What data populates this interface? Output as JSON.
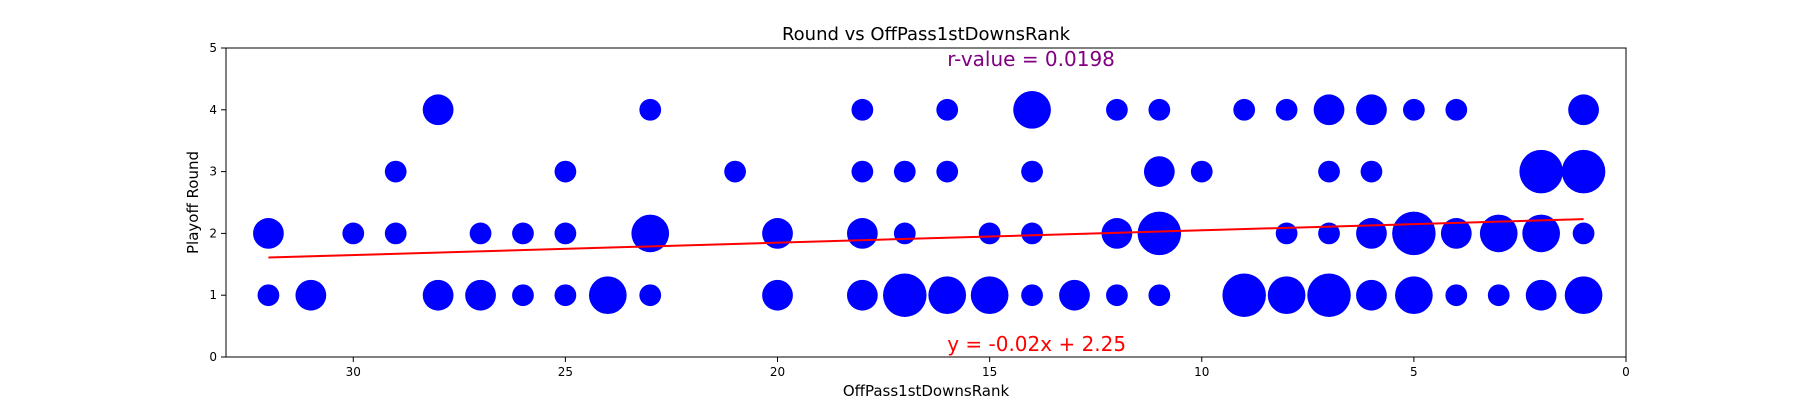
{
  "chart_data": {
    "type": "scatter",
    "title": "Round vs OffPass1stDownsRank",
    "xlabel": "OffPass1stDownsRank",
    "ylabel": "Playoff Round",
    "xlim": [
      33,
      0
    ],
    "ylim": [
      0,
      5
    ],
    "x_inverted": true,
    "x_ticks": [
      30,
      25,
      20,
      15,
      10,
      5,
      0
    ],
    "y_ticks": [
      0,
      1,
      2,
      3,
      4,
      5
    ],
    "grid": false,
    "marker_color": "#0000ff",
    "regression": {
      "slope": -0.02,
      "intercept": 2.25,
      "x_range": [
        32,
        1
      ],
      "color": "#ff0000",
      "equation_label": "y = -0.02x + 2.25",
      "equation_color": "#ff0000"
    },
    "r_value_label": "r-value = 0.0198",
    "r_value_color": "#800080",
    "points": [
      {
        "x": 32,
        "y": 1,
        "count": 1
      },
      {
        "x": 31,
        "y": 1,
        "count": 2
      },
      {
        "x": 28,
        "y": 1,
        "count": 2
      },
      {
        "x": 27,
        "y": 1,
        "count": 2
      },
      {
        "x": 26,
        "y": 1,
        "count": 1
      },
      {
        "x": 25,
        "y": 1,
        "count": 1
      },
      {
        "x": 24,
        "y": 1,
        "count": 3
      },
      {
        "x": 23,
        "y": 1,
        "count": 1
      },
      {
        "x": 20,
        "y": 1,
        "count": 2
      },
      {
        "x": 18,
        "y": 1,
        "count": 2
      },
      {
        "x": 17,
        "y": 1,
        "count": 4
      },
      {
        "x": 16,
        "y": 1,
        "count": 3
      },
      {
        "x": 15,
        "y": 1,
        "count": 3
      },
      {
        "x": 14,
        "y": 1,
        "count": 1
      },
      {
        "x": 13,
        "y": 1,
        "count": 2
      },
      {
        "x": 12,
        "y": 1,
        "count": 1
      },
      {
        "x": 11,
        "y": 1,
        "count": 1
      },
      {
        "x": 9,
        "y": 1,
        "count": 4
      },
      {
        "x": 8,
        "y": 1,
        "count": 3
      },
      {
        "x": 7,
        "y": 1,
        "count": 4
      },
      {
        "x": 6,
        "y": 1,
        "count": 2
      },
      {
        "x": 5,
        "y": 1,
        "count": 3
      },
      {
        "x": 4,
        "y": 1,
        "count": 1
      },
      {
        "x": 3,
        "y": 1,
        "count": 1
      },
      {
        "x": 2,
        "y": 1,
        "count": 2
      },
      {
        "x": 1,
        "y": 1,
        "count": 3
      },
      {
        "x": 32,
        "y": 2,
        "count": 2
      },
      {
        "x": 30,
        "y": 2,
        "count": 1
      },
      {
        "x": 29,
        "y": 2,
        "count": 1
      },
      {
        "x": 27,
        "y": 2,
        "count": 1
      },
      {
        "x": 26,
        "y": 2,
        "count": 1
      },
      {
        "x": 25,
        "y": 2,
        "count": 1
      },
      {
        "x": 23,
        "y": 2,
        "count": 3
      },
      {
        "x": 20,
        "y": 2,
        "count": 2
      },
      {
        "x": 18,
        "y": 2,
        "count": 2
      },
      {
        "x": 17,
        "y": 2,
        "count": 1
      },
      {
        "x": 15,
        "y": 2,
        "count": 1
      },
      {
        "x": 14,
        "y": 2,
        "count": 1
      },
      {
        "x": 12,
        "y": 2,
        "count": 2
      },
      {
        "x": 11,
        "y": 2,
        "count": 4
      },
      {
        "x": 8,
        "y": 2,
        "count": 1
      },
      {
        "x": 7,
        "y": 2,
        "count": 1
      },
      {
        "x": 6,
        "y": 2,
        "count": 2
      },
      {
        "x": 5,
        "y": 2,
        "count": 4
      },
      {
        "x": 4,
        "y": 2,
        "count": 2
      },
      {
        "x": 3,
        "y": 2,
        "count": 3
      },
      {
        "x": 2,
        "y": 2,
        "count": 3
      },
      {
        "x": 1,
        "y": 2,
        "count": 1
      },
      {
        "x": 29,
        "y": 3,
        "count": 1
      },
      {
        "x": 25,
        "y": 3,
        "count": 1
      },
      {
        "x": 21,
        "y": 3,
        "count": 1
      },
      {
        "x": 18,
        "y": 3,
        "count": 1
      },
      {
        "x": 17,
        "y": 3,
        "count": 1
      },
      {
        "x": 16,
        "y": 3,
        "count": 1
      },
      {
        "x": 14,
        "y": 3,
        "count": 1
      },
      {
        "x": 11,
        "y": 3,
        "count": 2
      },
      {
        "x": 10,
        "y": 3,
        "count": 1
      },
      {
        "x": 7,
        "y": 3,
        "count": 1
      },
      {
        "x": 6,
        "y": 3,
        "count": 1
      },
      {
        "x": 2,
        "y": 3,
        "count": 4
      },
      {
        "x": 1,
        "y": 3,
        "count": 4
      },
      {
        "x": 28,
        "y": 4,
        "count": 2
      },
      {
        "x": 23,
        "y": 4,
        "count": 1
      },
      {
        "x": 18,
        "y": 4,
        "count": 1
      },
      {
        "x": 16,
        "y": 4,
        "count": 1
      },
      {
        "x": 14,
        "y": 4,
        "count": 3
      },
      {
        "x": 12,
        "y": 4,
        "count": 1
      },
      {
        "x": 11,
        "y": 4,
        "count": 1
      },
      {
        "x": 9,
        "y": 4,
        "count": 1
      },
      {
        "x": 8,
        "y": 4,
        "count": 1
      },
      {
        "x": 7,
        "y": 4,
        "count": 2
      },
      {
        "x": 6,
        "y": 4,
        "count": 2
      },
      {
        "x": 5,
        "y": 4,
        "count": 1
      },
      {
        "x": 4,
        "y": 4,
        "count": 1
      },
      {
        "x": 1,
        "y": 4,
        "count": 2
      }
    ]
  }
}
